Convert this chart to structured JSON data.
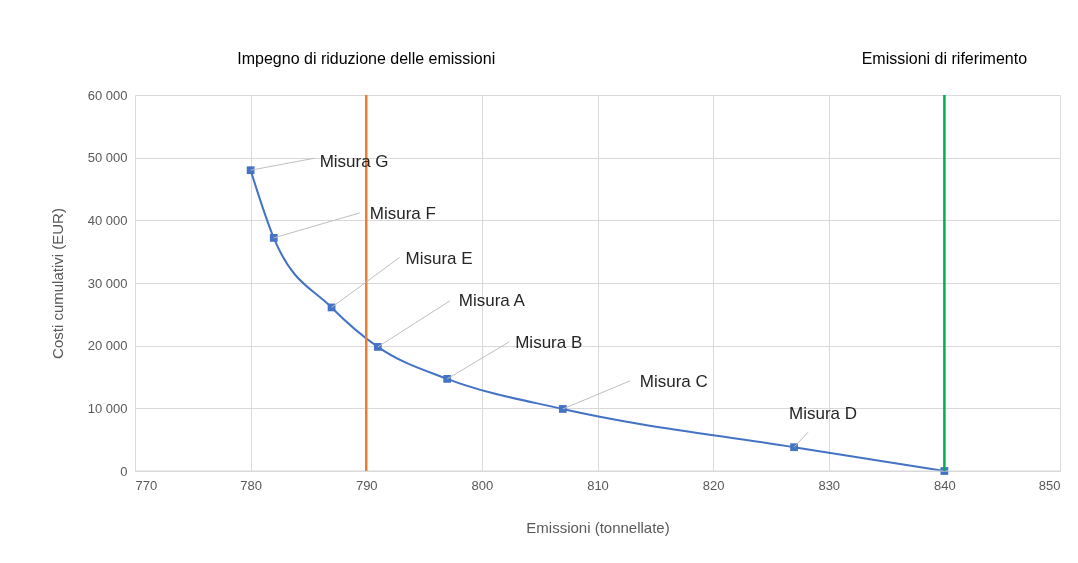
{
  "chart_data": {
    "type": "line",
    "xlabel": "Emissioni (tonnellate)",
    "ylabel": "Costi cumulativi (EUR)",
    "x": [
      780,
      782,
      787,
      791,
      797,
      807,
      827,
      840
    ],
    "series": [
      {
        "color": "#4472c4",
        "values": [
          48000,
          37200,
          26100,
          19800,
          14700,
          9900,
          3800,
          0
        ]
      }
    ],
    "marker": "square",
    "grid": true,
    "xlim": [
      770,
      850
    ],
    "xticks": [
      770,
      780,
      790,
      800,
      810,
      820,
      830,
      840,
      850
    ],
    "ylim": [
      0,
      60000
    ],
    "yticks": [
      0,
      {
        "value": 10000,
        "label": "10 000"
      },
      {
        "value": 20000,
        "label": "20 000"
      },
      {
        "value": 30000,
        "label": "30 000"
      },
      {
        "value": 40000,
        "label": "40 000"
      },
      {
        "value": 50000,
        "label": "50 000"
      },
      {
        "value": 60000,
        "label": "60 000"
      }
    ],
    "ref_lines": [
      {
        "axis": "x",
        "value": 790,
        "label": "Impegno di riduzione delle emissioni",
        "color": "#ed7d31"
      },
      {
        "axis": "x",
        "value": 840,
        "label": "Emissioni di riferimento",
        "color": "#00b050"
      }
    ],
    "annotations": [
      {
        "text": "Misura G",
        "x": 780,
        "y": 48000
      },
      {
        "text": "Misura F",
        "x": 782,
        "y": 37200
      },
      {
        "text": "Misura E",
        "x": 787,
        "y": 26100
      },
      {
        "text": "Misura A",
        "x": 791,
        "y": 19800
      },
      {
        "text": "Misura  B",
        "x": 797,
        "y": 14700
      },
      {
        "text": "Misura C",
        "x": 807,
        "y": 9900
      },
      {
        "text": "Misura  D",
        "x": 827,
        "y": 3800
      }
    ]
  }
}
